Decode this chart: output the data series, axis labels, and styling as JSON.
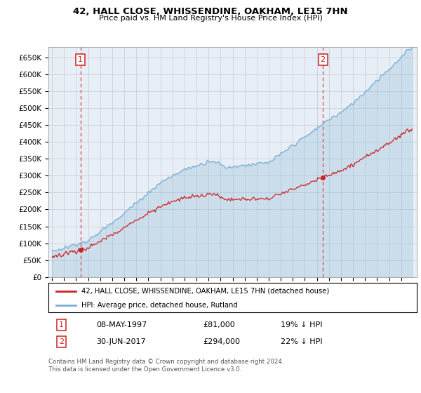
{
  "title": "42, HALL CLOSE, WHISSENDINE, OAKHAM, LE15 7HN",
  "subtitle": "Price paid vs. HM Land Registry's House Price Index (HPI)",
  "legend_line1": "42, HALL CLOSE, WHISSENDINE, OAKHAM, LE15 7HN (detached house)",
  "legend_line2": "HPI: Average price, detached house, Rutland",
  "sale1_date": "08-MAY-1997",
  "sale1_price": "£81,000",
  "sale1_hpi": "19% ↓ HPI",
  "sale2_date": "30-JUN-2017",
  "sale2_price": "£294,000",
  "sale2_hpi": "22% ↓ HPI",
  "footer": "Contains HM Land Registry data © Crown copyright and database right 2024.\nThis data is licensed under the Open Government Licence v3.0.",
  "hpi_color": "#7bafd4",
  "hpi_fill_color": "#ddeeff",
  "price_color": "#cc2222",
  "dashed_line_color": "#cc4444",
  "background_color": "#e8eef5",
  "grid_color": "#c0ccd8",
  "ylim": [
    0,
    680000
  ],
  "yticks": [
    0,
    50000,
    100000,
    150000,
    200000,
    250000,
    300000,
    350000,
    400000,
    450000,
    500000,
    550000,
    600000,
    650000
  ],
  "xlim_start": 1994.7,
  "xlim_end": 2025.3,
  "sale1_year": 1997.36,
  "sale2_year": 2017.5,
  "sale1_value": 81000,
  "sale2_value": 294000
}
